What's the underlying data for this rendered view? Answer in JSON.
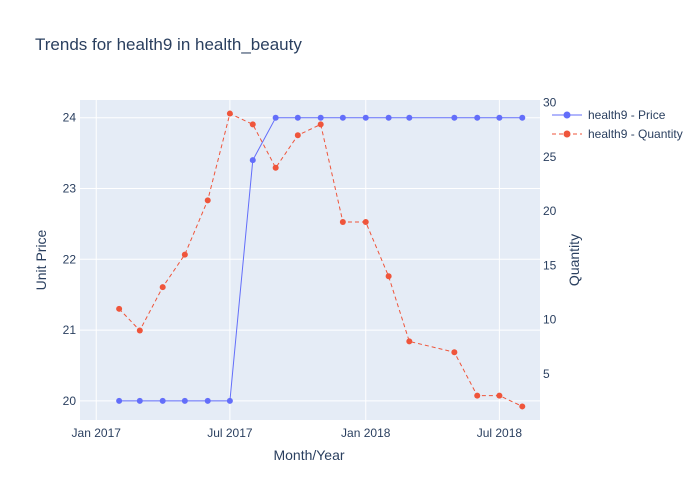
{
  "chart_data": {
    "type": "line",
    "title": "Trends for health9 in health_beauty",
    "xlabel": "Month/Year",
    "ylabel": "Unit Price",
    "y2label": "Quantity",
    "x_ticks": [
      {
        "date": "2017-01-01",
        "label": "Jan 2017"
      },
      {
        "date": "2017-07-01",
        "label": "Jul 2017"
      },
      {
        "date": "2018-01-01",
        "label": "Jan 2018"
      },
      {
        "date": "2018-07-01",
        "label": "Jul 2018"
      }
    ],
    "xlim": [
      "2016-12-10",
      "2018-08-25"
    ],
    "ylim": [
      19.73,
      24.25
    ],
    "y_ticks": [
      20,
      21,
      22,
      23,
      24
    ],
    "y2lim": [
      0.75,
      30.25
    ],
    "y2_ticks": [
      5,
      10,
      15,
      20,
      25,
      30
    ],
    "grid": true,
    "legend_position": "top-right",
    "colors": {
      "price": "#636efa",
      "quantity": "#ef553b",
      "plot_bg": "#e5ecf6",
      "text": "#2a3f5f"
    },
    "series": [
      {
        "name": "health9 - Price",
        "axis": "y",
        "line_style": "solid",
        "points": [
          {
            "x": "2017-02-01",
            "y": 20.0
          },
          {
            "x": "2017-03-01",
            "y": 20.0
          },
          {
            "x": "2017-04-01",
            "y": 20.0
          },
          {
            "x": "2017-05-01",
            "y": 20.0
          },
          {
            "x": "2017-06-01",
            "y": 20.0
          },
          {
            "x": "2017-07-01",
            "y": 20.0
          },
          {
            "x": "2017-08-01",
            "y": 23.4
          },
          {
            "x": "2017-09-01",
            "y": 24.0
          },
          {
            "x": "2017-10-01",
            "y": 24.0
          },
          {
            "x": "2017-11-01",
            "y": 24.0
          },
          {
            "x": "2017-12-01",
            "y": 24.0
          },
          {
            "x": "2018-01-01",
            "y": 24.0
          },
          {
            "x": "2018-02-01",
            "y": 24.0
          },
          {
            "x": "2018-03-01",
            "y": 24.0
          },
          {
            "x": "2018-05-01",
            "y": 24.0
          },
          {
            "x": "2018-06-01",
            "y": 24.0
          },
          {
            "x": "2018-07-01",
            "y": 24.0
          },
          {
            "x": "2018-08-01",
            "y": 24.0
          }
        ]
      },
      {
        "name": "health9 - Quantity",
        "axis": "y2",
        "line_style": "dash",
        "points": [
          {
            "x": "2017-02-01",
            "y": 11
          },
          {
            "x": "2017-03-01",
            "y": 9
          },
          {
            "x": "2017-04-01",
            "y": 13
          },
          {
            "x": "2017-05-01",
            "y": 16
          },
          {
            "x": "2017-06-01",
            "y": 21
          },
          {
            "x": "2017-07-01",
            "y": 29
          },
          {
            "x": "2017-08-01",
            "y": 28
          },
          {
            "x": "2017-09-01",
            "y": 24
          },
          {
            "x": "2017-10-01",
            "y": 27
          },
          {
            "x": "2017-11-01",
            "y": 28
          },
          {
            "x": "2017-12-01",
            "y": 19
          },
          {
            "x": "2018-01-01",
            "y": 19
          },
          {
            "x": "2018-02-01",
            "y": 14
          },
          {
            "x": "2018-03-01",
            "y": 8
          },
          {
            "x": "2018-05-01",
            "y": 7
          },
          {
            "x": "2018-06-01",
            "y": 3
          },
          {
            "x": "2018-07-01",
            "y": 3
          },
          {
            "x": "2018-08-01",
            "y": 2
          }
        ]
      }
    ]
  }
}
